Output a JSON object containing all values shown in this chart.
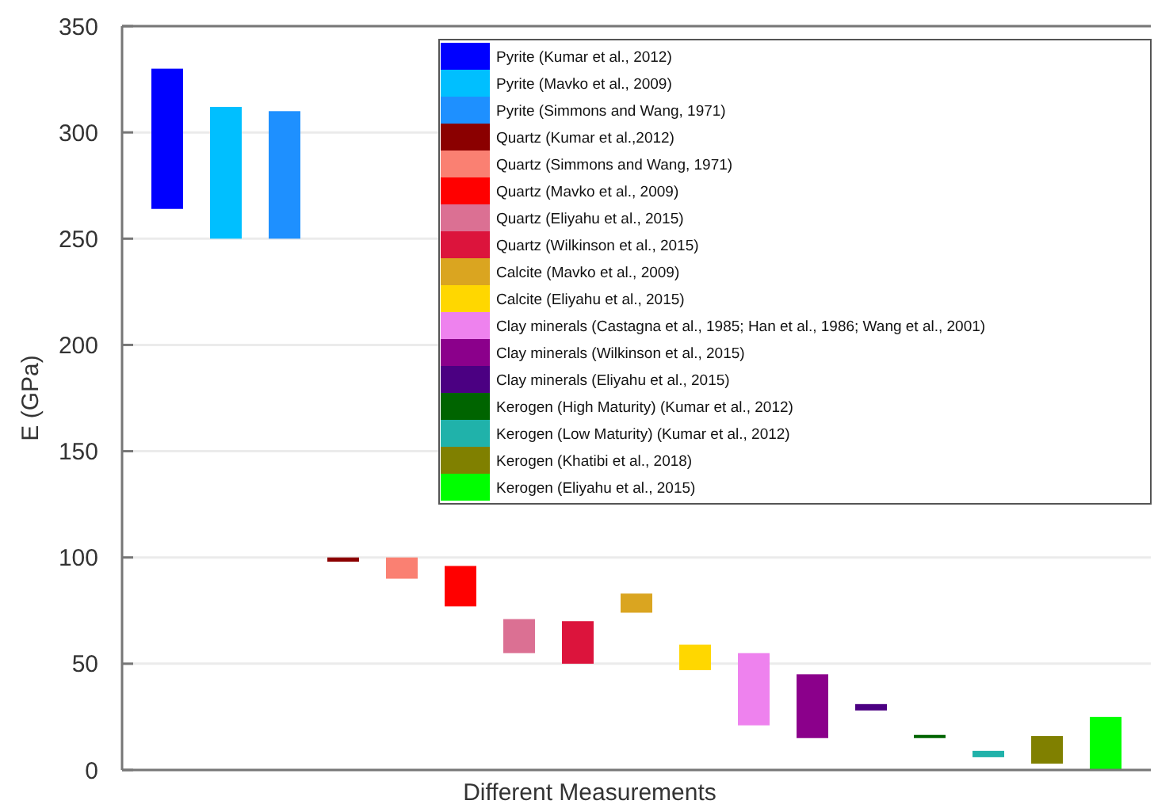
{
  "chart_data": {
    "type": "bar",
    "xlabel": "Different Measurements",
    "ylabel": "E (GPa)",
    "categories": [
      null,
      null,
      null,
      null,
      null,
      null,
      null,
      null,
      null,
      null,
      null,
      null,
      null,
      null,
      null,
      null,
      null
    ],
    "ylim": [
      0,
      350
    ],
    "yticks": [
      0,
      50,
      100,
      150,
      200,
      250,
      300,
      350
    ],
    "grid": "y",
    "legend": "top right",
    "series": [
      {
        "name": "Pyrite (Kumar et al., 2012)",
        "color": "#0000ff",
        "values": [
          66,
          null,
          null,
          null,
          null,
          null,
          null,
          null,
          null,
          null,
          null,
          null,
          null,
          null,
          null,
          null,
          null
        ],
        "base": [
          264,
          null,
          null,
          null,
          null,
          null,
          null,
          null,
          null,
          null,
          null,
          null,
          null,
          null,
          null,
          null,
          null
        ]
      },
      {
        "name": "Pyrite  (Mavko et al., 2009)",
        "color": "#00bfff",
        "values": [
          null,
          62,
          null,
          null,
          null,
          null,
          null,
          null,
          null,
          null,
          null,
          null,
          null,
          null,
          null,
          null,
          null
        ],
        "base": [
          null,
          250,
          null,
          null,
          null,
          null,
          null,
          null,
          null,
          null,
          null,
          null,
          null,
          null,
          null,
          null,
          null
        ]
      },
      {
        "name": "Pyrite (Simmons and Wang, 1971)",
        "color": "#1e90ff",
        "values": [
          null,
          null,
          60,
          null,
          null,
          null,
          null,
          null,
          null,
          null,
          null,
          null,
          null,
          null,
          null,
          null,
          null
        ],
        "base": [
          null,
          null,
          250,
          null,
          null,
          null,
          null,
          null,
          null,
          null,
          null,
          null,
          null,
          null,
          null,
          null,
          null
        ]
      },
      {
        "name": "Quartz (Kumar et al.,2012)",
        "color": "#8b0000",
        "values": [
          null,
          null,
          null,
          2,
          null,
          null,
          null,
          null,
          null,
          null,
          null,
          null,
          null,
          null,
          null,
          null,
          null
        ],
        "base": [
          null,
          null,
          null,
          98,
          null,
          null,
          null,
          null,
          null,
          null,
          null,
          null,
          null,
          null,
          null,
          null,
          null
        ]
      },
      {
        "name": "Quartz (Simmons and Wang, 1971)",
        "color": "#fa8072",
        "values": [
          null,
          null,
          null,
          null,
          10,
          null,
          null,
          null,
          null,
          null,
          null,
          null,
          null,
          null,
          null,
          null,
          null
        ],
        "base": [
          null,
          null,
          null,
          null,
          90,
          null,
          null,
          null,
          null,
          null,
          null,
          null,
          null,
          null,
          null,
          null,
          null
        ]
      },
      {
        "name": "Quartz (Mavko et al., 2009)",
        "color": "#ff0000",
        "values": [
          null,
          null,
          null,
          null,
          null,
          19,
          null,
          null,
          null,
          null,
          null,
          null,
          null,
          null,
          null,
          null,
          null
        ],
        "base": [
          null,
          null,
          null,
          null,
          null,
          77,
          null,
          null,
          null,
          null,
          null,
          null,
          null,
          null,
          null,
          null,
          null
        ]
      },
      {
        "name": "Quartz (Eliyahu et al., 2015)",
        "color": "#db7093",
        "values": [
          null,
          null,
          null,
          null,
          null,
          null,
          16,
          null,
          null,
          null,
          null,
          null,
          null,
          null,
          null,
          null,
          null
        ],
        "base": [
          null,
          null,
          null,
          null,
          null,
          null,
          55,
          null,
          null,
          null,
          null,
          null,
          null,
          null,
          null,
          null,
          null
        ]
      },
      {
        "name": "Quartz (Wilkinson et al., 2015)",
        "color": "#dc143c",
        "values": [
          null,
          null,
          null,
          null,
          null,
          null,
          null,
          20,
          null,
          null,
          null,
          null,
          null,
          null,
          null,
          null,
          null
        ],
        "base": [
          null,
          null,
          null,
          null,
          null,
          null,
          null,
          50,
          null,
          null,
          null,
          null,
          null,
          null,
          null,
          null,
          null
        ]
      },
      {
        "name": "Calcite (Mavko et al., 2009)",
        "color": "#daa520",
        "values": [
          null,
          null,
          null,
          null,
          null,
          null,
          null,
          null,
          9,
          null,
          null,
          null,
          null,
          null,
          null,
          null,
          null
        ],
        "base": [
          null,
          null,
          null,
          null,
          null,
          null,
          null,
          null,
          74,
          null,
          null,
          null,
          null,
          null,
          null,
          null,
          null
        ]
      },
      {
        "name": "Calcite (Eliyahu et al., 2015)",
        "color": "#ffd700",
        "values": [
          null,
          null,
          null,
          null,
          null,
          null,
          null,
          null,
          null,
          12,
          null,
          null,
          null,
          null,
          null,
          null,
          null
        ],
        "base": [
          null,
          null,
          null,
          null,
          null,
          null,
          null,
          null,
          null,
          47,
          null,
          null,
          null,
          null,
          null,
          null,
          null
        ]
      },
      {
        "name": "Clay minerals (Castagna et al., 1985; Han et al., 1986; Wang et al., 2001)",
        "color": "#ee82ee",
        "values": [
          null,
          null,
          null,
          null,
          null,
          null,
          null,
          null,
          null,
          null,
          34,
          null,
          null,
          null,
          null,
          null,
          null
        ],
        "base": [
          null,
          null,
          null,
          null,
          null,
          null,
          null,
          null,
          null,
          null,
          21,
          null,
          null,
          null,
          null,
          null,
          null
        ]
      },
      {
        "name": "Clay minerals (Wilkinson et al., 2015)",
        "color": "#8b008b",
        "values": [
          null,
          null,
          null,
          null,
          null,
          null,
          null,
          null,
          null,
          null,
          null,
          30,
          null,
          null,
          null,
          null,
          null
        ],
        "base": [
          null,
          null,
          null,
          null,
          null,
          null,
          null,
          null,
          null,
          null,
          null,
          15,
          null,
          null,
          null,
          null,
          null
        ]
      },
      {
        "name": "Clay minerals (Eliyahu et al., 2015)",
        "color": "#4b0082",
        "values": [
          null,
          null,
          null,
          null,
          null,
          null,
          null,
          null,
          null,
          null,
          null,
          null,
          3,
          null,
          null,
          null,
          null
        ],
        "base": [
          null,
          null,
          null,
          null,
          null,
          null,
          null,
          null,
          null,
          null,
          null,
          null,
          28,
          null,
          null,
          null,
          null
        ]
      },
      {
        "name": "Kerogen (High Maturity) (Kumar et al., 2012)",
        "color": "#006400",
        "values": [
          null,
          null,
          null,
          null,
          null,
          null,
          null,
          null,
          null,
          null,
          null,
          null,
          null,
          1.5,
          null,
          null,
          null
        ],
        "base": [
          null,
          null,
          null,
          null,
          null,
          null,
          null,
          null,
          null,
          null,
          null,
          null,
          null,
          15,
          null,
          null,
          null
        ]
      },
      {
        "name": "Kerogen (Low Maturity) (Kumar et al., 2012)",
        "color": "#20b2aa",
        "values": [
          null,
          null,
          null,
          null,
          null,
          null,
          null,
          null,
          null,
          null,
          null,
          null,
          null,
          null,
          3,
          null,
          null
        ],
        "base": [
          null,
          null,
          null,
          null,
          null,
          null,
          null,
          null,
          null,
          null,
          null,
          null,
          null,
          null,
          6,
          null,
          null
        ]
      },
      {
        "name": "Kerogen (Khatibi et al., 2018)",
        "color": "#808000",
        "values": [
          null,
          null,
          null,
          null,
          null,
          null,
          null,
          null,
          null,
          null,
          null,
          null,
          null,
          null,
          null,
          13,
          null
        ],
        "base": [
          null,
          null,
          null,
          null,
          null,
          null,
          null,
          null,
          null,
          null,
          null,
          null,
          null,
          null,
          null,
          3,
          null
        ]
      },
      {
        "name": "Kerogen (Eliyahu et al., 2015)",
        "color": "#00ff00",
        "values": [
          null,
          null,
          null,
          null,
          null,
          null,
          null,
          null,
          null,
          null,
          null,
          null,
          null,
          null,
          null,
          null,
          25
        ],
        "base": [
          null,
          null,
          null,
          null,
          null,
          null,
          null,
          null,
          null,
          null,
          null,
          null,
          null,
          null,
          null,
          null,
          0
        ]
      }
    ]
  }
}
